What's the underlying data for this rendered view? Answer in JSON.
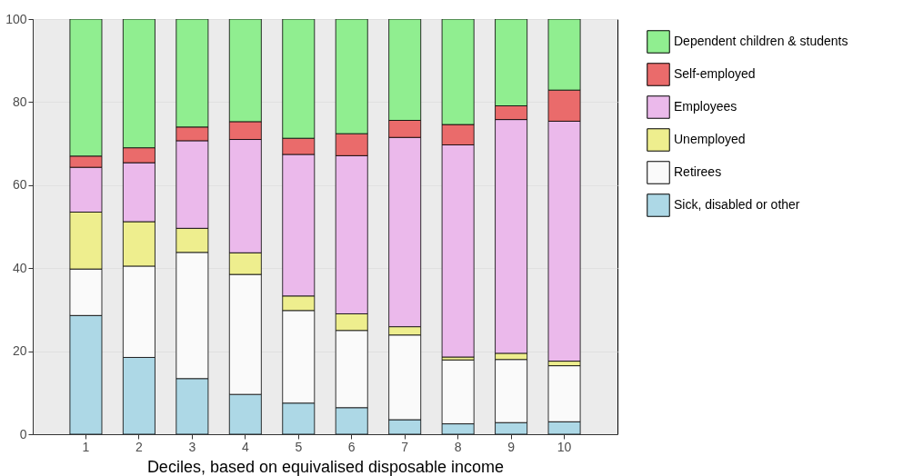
{
  "chart_data": {
    "type": "bar",
    "stacked": true,
    "xlabel": "Deciles, based on equivalised disposable income",
    "categories": [
      "1",
      "2",
      "3",
      "4",
      "5",
      "6",
      "7",
      "8",
      "9",
      "10"
    ],
    "series": [
      {
        "name": "Sick, disabled or other",
        "color": "#add8e6",
        "values": [
          28.6,
          18.5,
          13.4,
          9.6,
          7.5,
          6.4,
          3.5,
          2.5,
          2.8,
          3.0
        ]
      },
      {
        "name": "Retirees",
        "color": "#fafafa",
        "values": [
          11.2,
          22.0,
          30.4,
          28.9,
          22.3,
          18.6,
          20.4,
          15.4,
          15.2,
          13.5
        ]
      },
      {
        "name": "Unemployed",
        "color": "#eeee8e",
        "values": [
          13.7,
          10.7,
          5.8,
          5.2,
          3.5,
          4.0,
          2.0,
          0.7,
          1.5,
          1.1
        ]
      },
      {
        "name": "Employees",
        "color": "#ebb9eb",
        "values": [
          10.8,
          14.2,
          21.1,
          27.3,
          34.1,
          38.1,
          45.6,
          51.1,
          56.3,
          57.8
        ]
      },
      {
        "name": "Self-employed",
        "color": "#ea6b6b",
        "values": [
          2.7,
          3.6,
          3.3,
          4.3,
          3.9,
          5.3,
          4.1,
          4.9,
          3.3,
          7.5
        ]
      },
      {
        "name": "Dependent children & students",
        "color": "#90ee90",
        "values": [
          33.0,
          31.0,
          26.0,
          24.7,
          28.7,
          27.6,
          24.4,
          25.4,
          20.9,
          17.1
        ]
      }
    ],
    "ylim": [
      0,
      100
    ],
    "yticks": [
      0,
      20,
      40,
      60,
      80,
      100
    ],
    "grid": "y",
    "legend": "right"
  }
}
